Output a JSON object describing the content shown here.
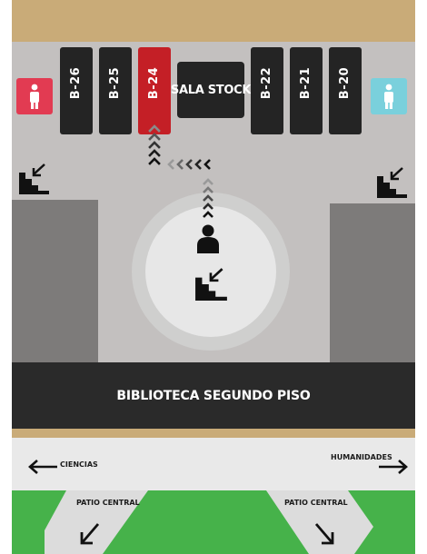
{
  "rooms": [
    {
      "label": "B-26",
      "active": false
    },
    {
      "label": "B-25",
      "active": false
    },
    {
      "label": "B-24",
      "active": true
    },
    {
      "label": "B-22",
      "active": false
    },
    {
      "label": "B-21",
      "active": false
    },
    {
      "label": "B-20",
      "active": false
    }
  ],
  "stock_room": {
    "label": "SALA STOCK"
  },
  "banner": {
    "label": "BIBLIOTECA SEGUNDO PISO"
  },
  "directions": {
    "ciencias": "CIENCIAS",
    "humanidades": "HUMANIDADES",
    "patio_left": "PATIO CENTRAL",
    "patio_right": "PATIO CENTRAL"
  },
  "icons": [
    "women-restroom-icon",
    "men-restroom-icon",
    "stairs-icon",
    "person-icon",
    "arrow-left-icon",
    "arrow-right-icon",
    "arrow-down-left-icon",
    "arrow-down-right-icon"
  ],
  "colors": {
    "active_room": "#c41f26",
    "room": "#242424",
    "women_restroom": "#e23b52",
    "men_restroom": "#7ad0dc",
    "floor": "#c3c0bf",
    "patio": "#46b24a",
    "wall_tan": "#c9ab78"
  }
}
